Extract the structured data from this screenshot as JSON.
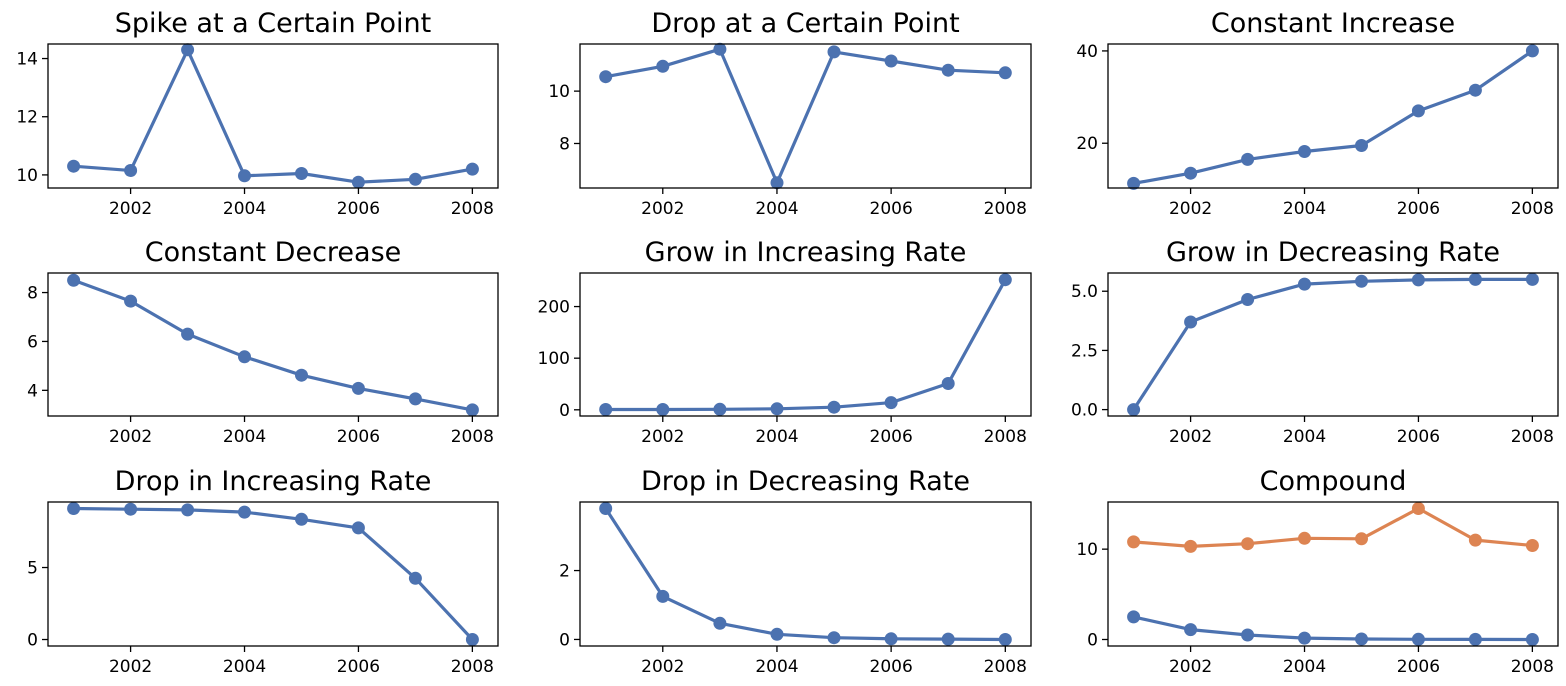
{
  "chart_data": [
    {
      "type": "line",
      "title": "Spike at a Certain Point",
      "x": [
        2001,
        2002,
        2003,
        2004,
        2005,
        2006,
        2007,
        2008
      ],
      "series": [
        {
          "values": [
            10.3,
            10.15,
            14.3,
            9.97,
            10.05,
            9.75,
            9.85,
            10.2
          ],
          "color": "#4C72B0"
        }
      ],
      "ylim": [
        9.55,
        14.5
      ],
      "yticks": [
        10,
        12,
        14
      ],
      "xticks": [
        2002,
        2004,
        2006,
        2008
      ],
      "grid": false
    },
    {
      "type": "line",
      "title": "Drop at a Certain Point",
      "x": [
        2001,
        2002,
        2003,
        2004,
        2005,
        2006,
        2007,
        2008
      ],
      "series": [
        {
          "values": [
            10.55,
            10.95,
            11.6,
            6.5,
            11.5,
            11.15,
            10.8,
            10.7
          ],
          "color": "#4C72B0"
        }
      ],
      "ylim": [
        6.3,
        11.8
      ],
      "yticks": [
        8,
        10
      ],
      "xticks": [
        2002,
        2004,
        2006,
        2008
      ],
      "grid": false
    },
    {
      "type": "line",
      "title": "Constant Increase",
      "x": [
        2001,
        2002,
        2003,
        2004,
        2005,
        2006,
        2007,
        2008
      ],
      "series": [
        {
          "values": [
            11.3,
            13.5,
            16.5,
            18.2,
            19.5,
            27,
            31.5,
            40
          ],
          "color": "#4C72B0"
        }
      ],
      "ylim": [
        10.3,
        41.5
      ],
      "yticks": [
        20,
        40
      ],
      "xticks": [
        2002,
        2004,
        2006,
        2008
      ],
      "grid": false
    },
    {
      "type": "line",
      "title": "Constant Decrease",
      "x": [
        2001,
        2002,
        2003,
        2004,
        2005,
        2006,
        2007,
        2008
      ],
      "series": [
        {
          "values": [
            8.5,
            7.65,
            6.3,
            5.37,
            4.62,
            4.08,
            3.65,
            3.2
          ],
          "color": "#4C72B0"
        }
      ],
      "ylim": [
        2.95,
        8.8
      ],
      "yticks": [
        4,
        6,
        8
      ],
      "xticks": [
        2002,
        2004,
        2006,
        2008
      ],
      "grid": false
    },
    {
      "type": "line",
      "title": "Grow in Increasing Rate",
      "x": [
        2001,
        2002,
        2003,
        2004,
        2005,
        2006,
        2007,
        2008
      ],
      "series": [
        {
          "values": [
            0.5,
            0.5,
            1,
            2,
            5,
            14,
            51,
            252
          ],
          "color": "#4C72B0"
        }
      ],
      "ylim": [
        -12,
        265
      ],
      "yticks": [
        0,
        100,
        200
      ],
      "xticks": [
        2002,
        2004,
        2006,
        2008
      ],
      "grid": false
    },
    {
      "type": "line",
      "title": "Grow in Decreasing Rate",
      "x": [
        2001,
        2002,
        2003,
        2004,
        2005,
        2006,
        2007,
        2008
      ],
      "series": [
        {
          "values": [
            0,
            3.7,
            4.65,
            5.3,
            5.42,
            5.48,
            5.5,
            5.5
          ],
          "color": "#4C72B0"
        }
      ],
      "ylim": [
        -0.27,
        5.77
      ],
      "yticks": [
        "0.0",
        "2.5",
        "5.0"
      ],
      "xticks": [
        2002,
        2004,
        2006,
        2008
      ],
      "grid": false
    },
    {
      "type": "line",
      "title": "Drop in Increasing Rate",
      "x": [
        2001,
        2002,
        2003,
        2004,
        2005,
        2006,
        2007,
        2008
      ],
      "series": [
        {
          "values": [
            9.1,
            9.05,
            9.0,
            8.85,
            8.35,
            7.75,
            4.25,
            0
          ],
          "color": "#4C72B0"
        }
      ],
      "ylim": [
        -0.45,
        9.55
      ],
      "yticks": [
        0,
        5
      ],
      "xticks": [
        2002,
        2004,
        2006,
        2008
      ],
      "grid": false
    },
    {
      "type": "line",
      "title": "Drop in Decreasing Rate",
      "x": [
        2001,
        2002,
        2003,
        2004,
        2005,
        2006,
        2007,
        2008
      ],
      "series": [
        {
          "values": [
            3.8,
            1.25,
            0.47,
            0.15,
            0.05,
            0.02,
            0.01,
            0
          ],
          "color": "#4C72B0"
        }
      ],
      "ylim": [
        -0.19,
        3.99
      ],
      "yticks": [
        0,
        2
      ],
      "xticks": [
        2002,
        2004,
        2006,
        2008
      ],
      "grid": false
    },
    {
      "type": "line",
      "title": "Compound",
      "x": [
        2001,
        2002,
        2003,
        2004,
        2005,
        2006,
        2007,
        2008
      ],
      "series": [
        {
          "values": [
            10.8,
            10.3,
            10.6,
            11.2,
            11.15,
            14.5,
            11,
            10.4
          ],
          "color": "#DD8452"
        },
        {
          "values": [
            2.5,
            1.1,
            0.5,
            0.15,
            0.05,
            0.02,
            0.01,
            0
          ],
          "color": "#4C72B0"
        }
      ],
      "ylim": [
        -0.72,
        15.22
      ],
      "yticks": [
        0,
        10
      ],
      "xticks": [
        2002,
        2004,
        2006,
        2008
      ],
      "grid": false
    }
  ]
}
